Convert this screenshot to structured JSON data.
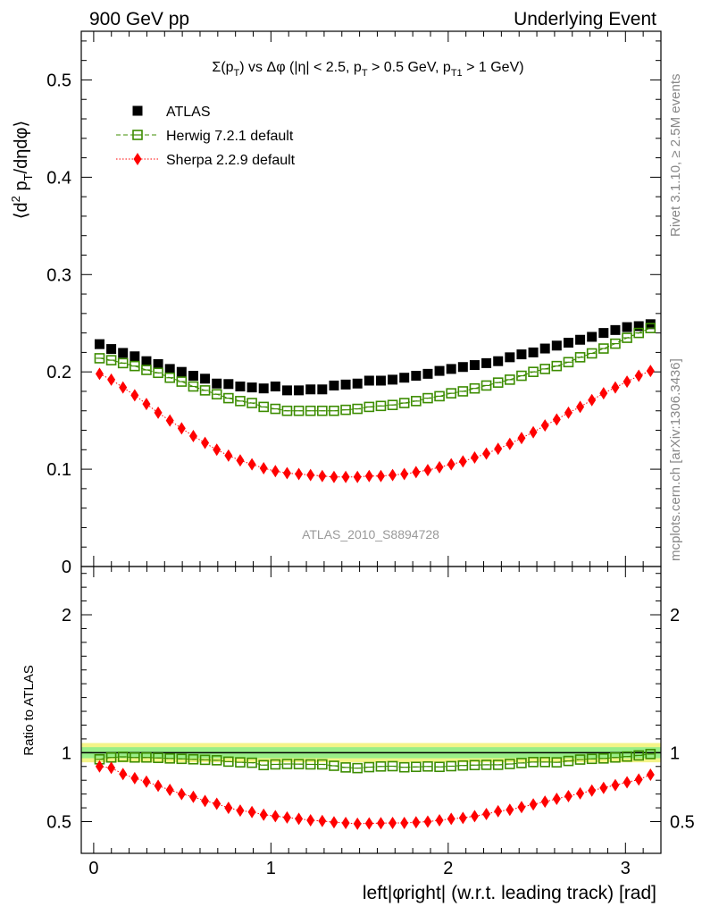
{
  "header": {
    "left": "900 GeV pp",
    "right": "Underlying Event"
  },
  "side_labels": {
    "rivet": "Rivet 3.1.10, ≥ 2.5M events",
    "mcplots": "mcplots.cern.ch [arXiv:1306.3436]"
  },
  "chart_data": [
    {
      "type": "scatter",
      "title": "Σ(p_T) vs Δφ (|η| < 2.5, p_T > 0.5 GeV, p_T1 > 1 GeV)",
      "ylabel": "⟨d² p_T/dηdφ⟩",
      "watermark": "ATLAS_2010_S8894728",
      "xlim": [
        -0.07,
        3.2
      ],
      "ylim": [
        0,
        0.55
      ],
      "yticks": [
        0,
        0.1,
        0.2,
        0.3,
        0.4,
        0.5
      ],
      "ytick_labels": [
        "0",
        "0.1",
        "0.2",
        "0.3",
        "0.4",
        "0.5"
      ],
      "legend_position": "top-left",
      "x": [
        0.0331,
        0.0992,
        0.1653,
        0.2315,
        0.2976,
        0.3637,
        0.4298,
        0.496,
        0.5621,
        0.6282,
        0.6944,
        0.7605,
        0.8266,
        0.8928,
        0.9589,
        1.025,
        1.0911,
        1.1573,
        1.2234,
        1.2895,
        1.3557,
        1.4218,
        1.4879,
        1.554,
        1.6202,
        1.6863,
        1.7524,
        1.8186,
        1.8847,
        1.9508,
        2.017,
        2.0831,
        2.1492,
        2.2153,
        2.2815,
        2.3476,
        2.4137,
        2.4799,
        2.546,
        2.6121,
        2.6783,
        2.7444,
        2.8105,
        2.8766,
        2.9428,
        3.0089,
        3.075,
        3.1412
      ],
      "series": [
        {
          "name": "ATLAS",
          "color": "#000000",
          "marker": "filled-square",
          "values": [
            0.2285,
            0.2235,
            0.2195,
            0.216,
            0.211,
            0.208,
            0.203,
            0.2,
            0.196,
            0.193,
            0.188,
            0.1875,
            0.185,
            0.184,
            0.183,
            0.185,
            0.181,
            0.181,
            0.182,
            0.182,
            0.186,
            0.187,
            0.188,
            0.191,
            0.191,
            0.192,
            0.194,
            0.196,
            0.198,
            0.201,
            0.203,
            0.205,
            0.207,
            0.209,
            0.211,
            0.215,
            0.218,
            0.22,
            0.224,
            0.227,
            0.23,
            0.233,
            0.236,
            0.24,
            0.243,
            0.246,
            0.247,
            0.249
          ]
        },
        {
          "name": "Herwig 7.2.1 default",
          "color": "#3c8c00",
          "marker": "open-square",
          "line": "dashed",
          "values": [
            0.214,
            0.212,
            0.209,
            0.206,
            0.202,
            0.199,
            0.194,
            0.19,
            0.185,
            0.181,
            0.177,
            0.173,
            0.17,
            0.168,
            0.164,
            0.162,
            0.16,
            0.16,
            0.16,
            0.16,
            0.16,
            0.161,
            0.162,
            0.164,
            0.165,
            0.166,
            0.168,
            0.17,
            0.173,
            0.175,
            0.178,
            0.18,
            0.183,
            0.186,
            0.189,
            0.192,
            0.196,
            0.2,
            0.203,
            0.206,
            0.21,
            0.215,
            0.219,
            0.224,
            0.229,
            0.235,
            0.24,
            0.245
          ]
        },
        {
          "name": "Sherpa 2.2.9 default",
          "color": "#ff0000",
          "marker": "filled-diamond",
          "line": "dotted",
          "values": [
            0.198,
            0.192,
            0.184,
            0.176,
            0.167,
            0.158,
            0.15,
            0.142,
            0.134,
            0.127,
            0.12,
            0.114,
            0.109,
            0.105,
            0.101,
            0.098,
            0.096,
            0.095,
            0.094,
            0.093,
            0.092,
            0.092,
            0.092,
            0.093,
            0.093,
            0.094,
            0.095,
            0.097,
            0.099,
            0.102,
            0.105,
            0.108,
            0.112,
            0.116,
            0.121,
            0.126,
            0.132,
            0.138,
            0.145,
            0.151,
            0.158,
            0.164,
            0.171,
            0.178,
            0.184,
            0.19,
            0.196,
            0.201
          ]
        }
      ]
    },
    {
      "type": "scatter",
      "ylabel": "Ratio to ATLAS",
      "xlabel": "left|φright| (w.r.t. leading track) [rad]",
      "xlim": [
        -0.07,
        3.2
      ],
      "ylim": [
        0.27,
        2.35
      ],
      "xticks": [
        0,
        1,
        2,
        3
      ],
      "xtick_labels": [
        "0",
        "1",
        "2",
        "3"
      ],
      "yticks": [
        0.5,
        1,
        2
      ],
      "ytick_labels": [
        "0.5",
        "1",
        "2"
      ],
      "reference_line": 1,
      "bands": [
        {
          "lo": 0.93,
          "hi": 1.07,
          "color": "#f4f488"
        },
        {
          "lo": 0.96,
          "hi": 1.04,
          "color": "#99ee88"
        }
      ],
      "series": [
        {
          "name": "Herwig 7.2.1 default",
          "color": "#3c8c00",
          "marker": "open-square",
          "line": "dashed",
          "values": [
            0.952,
            0.965,
            0.97,
            0.965,
            0.965,
            0.962,
            0.958,
            0.955,
            0.952,
            0.948,
            0.945,
            0.935,
            0.93,
            0.927,
            0.91,
            0.915,
            0.918,
            0.917,
            0.915,
            0.915,
            0.905,
            0.893,
            0.888,
            0.895,
            0.9,
            0.902,
            0.894,
            0.897,
            0.9,
            0.897,
            0.902,
            0.907,
            0.91,
            0.912,
            0.912,
            0.918,
            0.925,
            0.932,
            0.932,
            0.93,
            0.94,
            0.95,
            0.955,
            0.958,
            0.965,
            0.972,
            0.98,
            0.99
          ]
        },
        {
          "name": "Sherpa 2.2.9 default",
          "color": "#ff0000",
          "marker": "filled-diamond",
          "line": "dotted",
          "values": [
            0.9,
            0.89,
            0.845,
            0.815,
            0.79,
            0.76,
            0.73,
            0.7,
            0.68,
            0.65,
            0.63,
            0.6,
            0.58,
            0.57,
            0.55,
            0.54,
            0.53,
            0.52,
            0.51,
            0.505,
            0.495,
            0.49,
            0.485,
            0.487,
            0.489,
            0.49,
            0.49,
            0.495,
            0.5,
            0.51,
            0.52,
            0.527,
            0.54,
            0.555,
            0.575,
            0.586,
            0.605,
            0.625,
            0.645,
            0.665,
            0.685,
            0.705,
            0.725,
            0.745,
            0.765,
            0.785,
            0.805,
            0.84
          ]
        }
      ]
    }
  ]
}
